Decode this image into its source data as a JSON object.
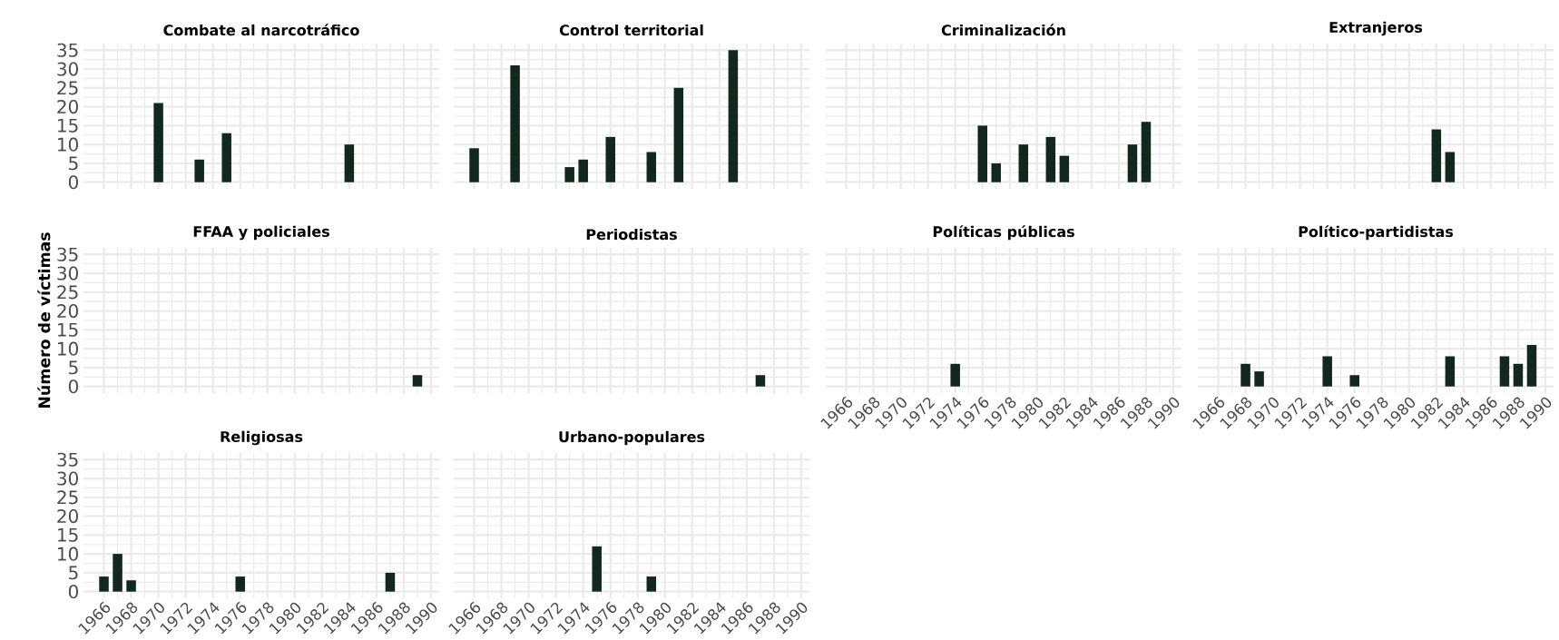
{
  "chart_data": [
    {
      "type": "bar",
      "title": "Combate al narcotráfico",
      "x": [
        1970,
        1973,
        1975,
        1984
      ],
      "values": [
        21,
        6,
        13,
        10
      ],
      "color": "#12281f",
      "xlim": [
        1964.5,
        1990.6
      ],
      "ylim": [
        -1.75,
        36.75
      ],
      "xticks": [
        1966,
        1968,
        1970,
        1972,
        1974,
        1976,
        1978,
        1980,
        1982,
        1984,
        1986,
        1988,
        1990
      ],
      "yticks": [
        0,
        5,
        10,
        15,
        20,
        25,
        30,
        35
      ],
      "grid": true,
      "tick_labels": "y"
    },
    {
      "type": "bar",
      "title": "Control territorial",
      "x": [
        1966,
        1969,
        1973,
        1974,
        1976,
        1979,
        1981,
        1985
      ],
      "values": [
        9,
        31,
        4,
        6,
        12,
        8,
        25,
        35
      ],
      "color": "#12281f",
      "xlim": [
        1964.5,
        1990.6
      ],
      "ylim": [
        -1.75,
        36.75
      ],
      "xticks": [
        1966,
        1968,
        1970,
        1972,
        1974,
        1976,
        1978,
        1980,
        1982,
        1984,
        1986,
        1988,
        1990
      ],
      "yticks": [
        0,
        5,
        10,
        15,
        20,
        25,
        30,
        35
      ],
      "grid": true,
      "tick_labels": false
    },
    {
      "type": "bar",
      "title": "Criminalización",
      "x": [
        1976,
        1977,
        1979,
        1981,
        1982,
        1987,
        1988
      ],
      "values": [
        15,
        5,
        10,
        12,
        7,
        10,
        16
      ],
      "color": "#12281f",
      "xlim": [
        1964.5,
        1990.6
      ],
      "ylim": [
        -1.75,
        36.75
      ],
      "xticks": [
        1966,
        1968,
        1970,
        1972,
        1974,
        1976,
        1978,
        1980,
        1982,
        1984,
        1986,
        1988,
        1990
      ],
      "yticks": [
        0,
        5,
        10,
        15,
        20,
        25,
        30,
        35
      ],
      "grid": true,
      "tick_labels": false
    },
    {
      "type": "bar",
      "title": "Extranjeros",
      "x": [
        1982,
        1983
      ],
      "values": [
        14,
        8
      ],
      "color": "#12281f",
      "xlim": [
        1964.5,
        1990.6
      ],
      "ylim": [
        -1.75,
        36.75
      ],
      "xticks": [
        1966,
        1968,
        1970,
        1972,
        1974,
        1976,
        1978,
        1980,
        1982,
        1984,
        1986,
        1988,
        1990
      ],
      "yticks": [
        0,
        5,
        10,
        15,
        20,
        25,
        30,
        35
      ],
      "grid": true,
      "tick_labels": false
    },
    {
      "type": "bar",
      "title": "FFAA y policiales",
      "ylabel": "Número de víctimas",
      "x": [
        1989
      ],
      "values": [
        3
      ],
      "color": "#12281f",
      "xlim": [
        1964.5,
        1990.6
      ],
      "ylim": [
        -1.75,
        36.75
      ],
      "xticks": [
        1966,
        1968,
        1970,
        1972,
        1974,
        1976,
        1978,
        1980,
        1982,
        1984,
        1986,
        1988,
        1990
      ],
      "yticks": [
        0,
        5,
        10,
        15,
        20,
        25,
        30,
        35
      ],
      "grid": true,
      "tick_labels": "y"
    },
    {
      "type": "bar",
      "title": "Periodistas",
      "x": [
        1987
      ],
      "values": [
        3
      ],
      "color": "#12281f",
      "xlim": [
        1964.5,
        1990.6
      ],
      "ylim": [
        -1.75,
        36.75
      ],
      "xticks": [
        1966,
        1968,
        1970,
        1972,
        1974,
        1976,
        1978,
        1980,
        1982,
        1984,
        1986,
        1988,
        1990
      ],
      "yticks": [
        0,
        5,
        10,
        15,
        20,
        25,
        30,
        35
      ],
      "grid": true,
      "tick_labels": false
    },
    {
      "type": "bar",
      "title": "Políticas públicas",
      "x": [
        1974
      ],
      "values": [
        6
      ],
      "color": "#12281f",
      "xlim": [
        1964.5,
        1990.6
      ],
      "ylim": [
        -1.75,
        36.75
      ],
      "xticks": [
        1966,
        1968,
        1970,
        1972,
        1974,
        1976,
        1978,
        1980,
        1982,
        1984,
        1986,
        1988,
        1990
      ],
      "yticks": [
        0,
        5,
        10,
        15,
        20,
        25,
        30,
        35
      ],
      "grid": true,
      "tick_labels": "x"
    },
    {
      "type": "bar",
      "title": "Político-partidistas",
      "x": [
        1968,
        1969,
        1974,
        1976,
        1983,
        1987,
        1988,
        1989
      ],
      "values": [
        6,
        4,
        8,
        3,
        8,
        8,
        6,
        11
      ],
      "color": "#12281f",
      "xlim": [
        1964.5,
        1990.6
      ],
      "ylim": [
        -1.75,
        36.75
      ],
      "xticks": [
        1966,
        1968,
        1970,
        1972,
        1974,
        1976,
        1978,
        1980,
        1982,
        1984,
        1986,
        1988,
        1990
      ],
      "yticks": [
        0,
        5,
        10,
        15,
        20,
        25,
        30,
        35
      ],
      "grid": true,
      "tick_labels": "x"
    },
    {
      "type": "bar",
      "title": "Religiosas",
      "x": [
        1966,
        1967,
        1968,
        1976,
        1987
      ],
      "values": [
        4,
        10,
        3,
        4,
        5
      ],
      "color": "#12281f",
      "xlim": [
        1964.5,
        1990.6
      ],
      "ylim": [
        -1.75,
        36.75
      ],
      "xticks": [
        1966,
        1968,
        1970,
        1972,
        1974,
        1976,
        1978,
        1980,
        1982,
        1984,
        1986,
        1988,
        1990
      ],
      "yticks": [
        0,
        5,
        10,
        15,
        20,
        25,
        30,
        35
      ],
      "grid": true
    },
    {
      "type": "bar",
      "title": "Urbano-populares",
      "x": [
        1975,
        1979
      ],
      "values": [
        12,
        4
      ],
      "color": "#12281f",
      "xlim": [
        1964.5,
        1990.6
      ],
      "ylim": [
        -1.75,
        36.75
      ],
      "xticks": [
        1966,
        1968,
        1970,
        1972,
        1974,
        1976,
        1978,
        1980,
        1982,
        1984,
        1986,
        1988,
        1990
      ],
      "yticks": [
        0,
        5,
        10,
        15,
        20,
        25,
        30,
        35
      ],
      "grid": true,
      "tick_labels": "x"
    }
  ]
}
